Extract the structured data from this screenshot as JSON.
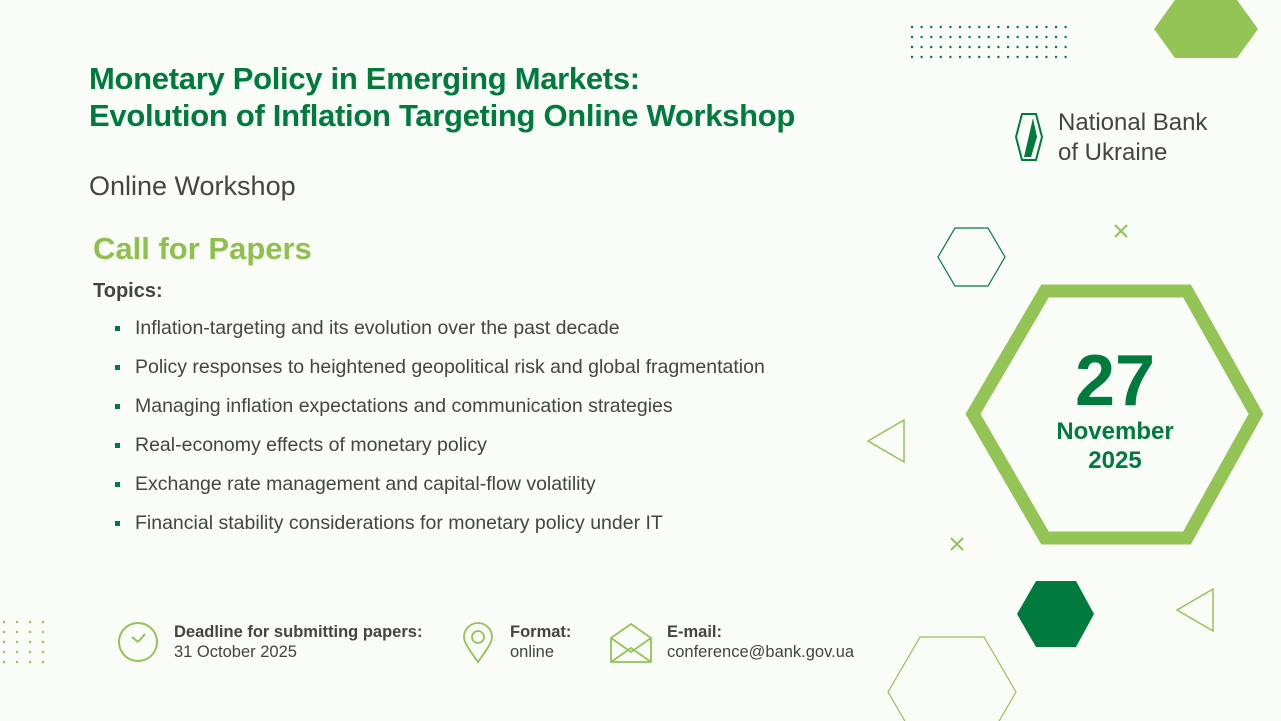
{
  "title_line1": "Monetary Policy in Emerging Markets:",
  "title_line2": "Evolution of Inflation Targeting Online Workshop",
  "subtitle": "Online Workshop",
  "call": "Call for Papers",
  "topics_label": "Topics:",
  "topics": [
    "Inflation-targeting and its evolution over the past decade",
    "Policy responses to heightened geopolitical risk and global fragmentation",
    "Managing inflation expectations and communication strategies",
    "Real-economy effects of monetary policy",
    "Exchange rate management and capital-flow volatility",
    "Financial stability considerations for monetary policy under IT"
  ],
  "logo": {
    "line1": "National Bank",
    "line2": "of Ukraine"
  },
  "date": {
    "day": "27",
    "month": "November",
    "year": "2025"
  },
  "deadline": {
    "label": "Deadline for submitting papers:",
    "value": "31 October 2025",
    "icon": "clock-icon"
  },
  "format": {
    "label": "Format:",
    "value": "online",
    "icon": "location-pin-icon"
  },
  "email": {
    "label": "E-mail:",
    "value": "conference@bank.gov.ua",
    "icon": "envelope-icon"
  },
  "colors": {
    "dark_green": "#007a3d",
    "light_green": "#8fc04e"
  }
}
